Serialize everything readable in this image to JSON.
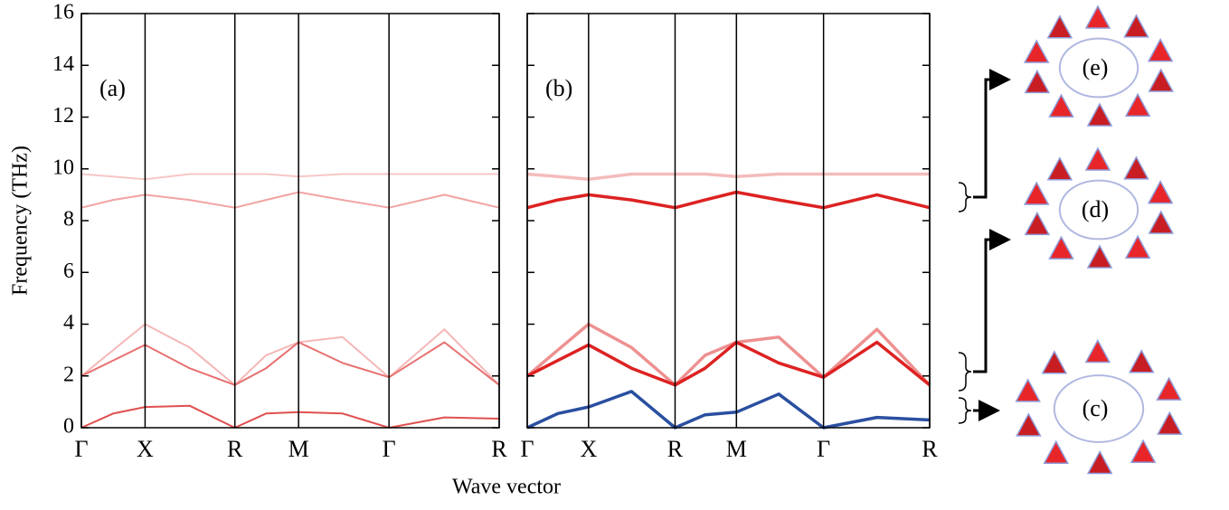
{
  "chart_data": [
    {
      "type": "line",
      "panel_label": "(a)",
      "ylabel": "Frequency (THz)",
      "xlabel": "Wave vector",
      "ylim": [
        0,
        16
      ],
      "yticks": [
        0,
        2,
        4,
        6,
        8,
        10,
        12,
        14,
        16
      ],
      "xlim": [
        0,
        6.56
      ],
      "xticks": [
        {
          "value": 0,
          "label": "Γ"
        },
        {
          "value": 1,
          "label": "X"
        },
        {
          "value": 2.41,
          "label": "R"
        },
        {
          "value": 3.41,
          "label": "M"
        },
        {
          "value": 4.83,
          "label": "Γ"
        },
        {
          "value": 6.56,
          "label": "R"
        }
      ],
      "x": [
        0,
        0.5,
        1,
        1.7,
        2.41,
        2.9,
        3.41,
        4.1,
        4.83,
        5.7,
        6.56
      ],
      "series": [
        {
          "color": "#f7c6c6",
          "values": [
            9.8,
            9.7,
            9.6,
            9.8,
            9.8,
            9.8,
            9.7,
            9.8,
            9.8,
            9.8,
            9.8
          ]
        },
        {
          "color": "#f2a3a3",
          "values": [
            8.5,
            8.8,
            9,
            8.8,
            8.5,
            8.8,
            9.1,
            8.8,
            8.5,
            9,
            8.5
          ]
        },
        {
          "color": "#f5b7b7",
          "values": [
            2,
            3,
            4,
            3.1,
            1.65,
            2.8,
            3.3,
            3.5,
            1.95,
            3.8,
            1.65
          ]
        },
        {
          "color": "#e77070",
          "values": [
            2,
            2.6,
            3.2,
            2.3,
            1.65,
            2.3,
            3.3,
            2.5,
            1.95,
            3.3,
            1.65
          ]
        },
        {
          "color": "#e05050",
          "values": [
            0,
            0.55,
            0.8,
            0.85,
            0,
            0.55,
            0.6,
            0.55,
            0,
            0.4,
            0.35
          ]
        }
      ]
    },
    {
      "type": "line",
      "panel_label": "(b)",
      "annotations": [
        "(e)",
        "(d)",
        "(c)"
      ],
      "ylim": [
        0,
        16
      ],
      "yticks": [
        0,
        2,
        4,
        6,
        8,
        10,
        12,
        14,
        16
      ],
      "xlim": [
        0,
        6.56
      ],
      "xticks": [
        {
          "value": 0,
          "label": "Γ"
        },
        {
          "value": 1,
          "label": "X"
        },
        {
          "value": 2.41,
          "label": "R"
        },
        {
          "value": 3.41,
          "label": "M"
        },
        {
          "value": 4.83,
          "label": "Γ"
        },
        {
          "value": 6.56,
          "label": "R"
        }
      ],
      "x": [
        0,
        0.5,
        1,
        1.7,
        2.41,
        2.9,
        3.41,
        4.1,
        4.83,
        5.7,
        6.56
      ],
      "series": [
        {
          "color": "#f4bcbc",
          "values": [
            9.8,
            9.7,
            9.6,
            9.8,
            9.8,
            9.8,
            9.7,
            9.8,
            9.8,
            9.8,
            9.8
          ]
        },
        {
          "color": "#dd2222",
          "values": [
            8.5,
            8.8,
            9,
            8.8,
            8.5,
            8.8,
            9.1,
            8.8,
            8.5,
            9,
            8.5
          ]
        },
        {
          "color": "#ee9090",
          "values": [
            2,
            3,
            4,
            3.1,
            1.65,
            2.8,
            3.3,
            3.5,
            1.95,
            3.8,
            1.65
          ]
        },
        {
          "color": "#dd2222",
          "values": [
            2,
            2.6,
            3.2,
            2.3,
            1.65,
            2.3,
            3.3,
            2.5,
            1.95,
            3.3,
            1.65
          ]
        },
        {
          "color": "#2a4fa0",
          "values": [
            0,
            0.55,
            0.8,
            1.4,
            0,
            0.5,
            0.6,
            1.3,
            0,
            0.4,
            0.3
          ]
        }
      ]
    }
  ]
}
